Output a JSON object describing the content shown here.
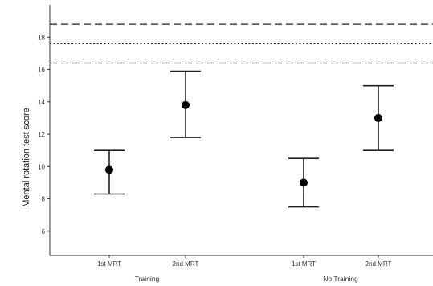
{
  "chart_data": {
    "type": "scatter",
    "title": "",
    "xlabel": "",
    "ylabel": "Mental rotation test score",
    "ylim": [
      4.5,
      20
    ],
    "yticks": [
      6,
      8,
      10,
      12,
      14,
      16,
      18
    ],
    "grid": false,
    "legend": "none",
    "groups": [
      {
        "label": "Training",
        "categories": [
          "1st MRT",
          "2nd MRT"
        ]
      },
      {
        "label": "No Training",
        "categories": [
          "1st MRT",
          "2nd MRT"
        ]
      }
    ],
    "points": [
      {
        "group": "Training",
        "category": "1st MRT",
        "mean": 9.8,
        "lower": 8.3,
        "upper": 11.0
      },
      {
        "group": "Training",
        "category": "2nd MRT",
        "mean": 13.8,
        "lower": 11.8,
        "upper": 15.9
      },
      {
        "group": "No Training",
        "category": "1st MRT",
        "mean": 9.0,
        "lower": 7.5,
        "upper": 10.5
      },
      {
        "group": "No Training",
        "category": "2nd MRT",
        "mean": 13.0,
        "lower": 11.0,
        "upper": 15.0
      }
    ],
    "reference_lines": [
      {
        "value": 18.8,
        "style": "dashed"
      },
      {
        "value": 17.6,
        "style": "dotted"
      },
      {
        "value": 16.4,
        "style": "dashed"
      }
    ],
    "colors": {
      "marker": "#000000",
      "errorbar": "#222222",
      "reference": "#222222",
      "axis": "#333333"
    }
  }
}
